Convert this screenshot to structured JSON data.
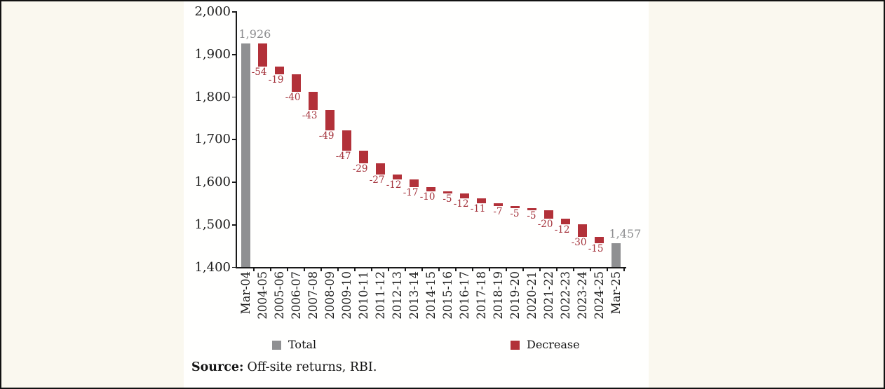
{
  "chart_data": {
    "type": "bar",
    "subtype": "waterfall",
    "title": "",
    "xlabel": "",
    "ylabel": "",
    "ylim": [
      1400,
      2000
    ],
    "grid": false,
    "legend_position": "bottom",
    "columns": [
      {
        "label": "Mar-04",
        "kind": "total",
        "value": 1926,
        "display": "1,926"
      },
      {
        "label": "2004-05",
        "kind": "decrease",
        "value": -54,
        "display": "-54"
      },
      {
        "label": "2005-06",
        "kind": "decrease",
        "value": -19,
        "display": "-19"
      },
      {
        "label": "2006-07",
        "kind": "decrease",
        "value": -40,
        "display": "-40"
      },
      {
        "label": "2007-08",
        "kind": "decrease",
        "value": -43,
        "display": "-43"
      },
      {
        "label": "2008-09",
        "kind": "decrease",
        "value": -49,
        "display": "-49"
      },
      {
        "label": "2009-10",
        "kind": "decrease",
        "value": -47,
        "display": "-47"
      },
      {
        "label": "2010-11",
        "kind": "decrease",
        "value": -29,
        "display": "-29"
      },
      {
        "label": "2011-12",
        "kind": "decrease",
        "value": -27,
        "display": "-27"
      },
      {
        "label": "2012-13",
        "kind": "decrease",
        "value": -12,
        "display": "-12"
      },
      {
        "label": "2013-14",
        "kind": "decrease",
        "value": -17,
        "display": "-17"
      },
      {
        "label": "2014-15",
        "kind": "decrease",
        "value": -10,
        "display": "-10"
      },
      {
        "label": "2015-16",
        "kind": "decrease",
        "value": -5,
        "display": "-5"
      },
      {
        "label": "2016-17",
        "kind": "decrease",
        "value": -12,
        "display": "-12"
      },
      {
        "label": "2017-18",
        "kind": "decrease",
        "value": -11,
        "display": "-11"
      },
      {
        "label": "2018-19",
        "kind": "decrease",
        "value": -7,
        "display": "-7"
      },
      {
        "label": "2019-20",
        "kind": "decrease",
        "value": -5,
        "display": "-5"
      },
      {
        "label": "2020-21",
        "kind": "decrease",
        "value": -5,
        "display": "-5"
      },
      {
        "label": "2021-22",
        "kind": "decrease",
        "value": -20,
        "display": "-20"
      },
      {
        "label": "2022-23",
        "kind": "decrease",
        "value": -12,
        "display": "-12"
      },
      {
        "label": "2023-24",
        "kind": "decrease",
        "value": -30,
        "display": "-30"
      },
      {
        "label": "2024-25",
        "kind": "decrease",
        "value": -15,
        "display": "-15"
      },
      {
        "label": "Mar-25",
        "kind": "total",
        "value": 1457,
        "display": "1,457"
      }
    ],
    "yticks": [
      {
        "value": 2000,
        "label": "2,000"
      },
      {
        "value": 1900,
        "label": "1,900"
      },
      {
        "value": 1800,
        "label": "1,800"
      },
      {
        "value": 1700,
        "label": "1,700"
      },
      {
        "value": 1600,
        "label": "1,600"
      },
      {
        "value": 1500,
        "label": "1,500"
      },
      {
        "value": 1400,
        "label": "1,400"
      }
    ],
    "legend": [
      {
        "label": "Total",
        "color": "#8f9092"
      },
      {
        "label": "Decrease",
        "color": "#b23139"
      }
    ]
  },
  "colors": {
    "total_bar": "#8f9092",
    "decrease_bar": "#b23139",
    "total_value_label": "#8b8c8e",
    "decrease_value_label": "#a4323b",
    "axis": "#1a1a1a",
    "panel_background": "#fffffe",
    "page_background": "#faf8ef"
  },
  "source": {
    "prefix": "Source:",
    "text": "Off-site returns, RBI."
  }
}
